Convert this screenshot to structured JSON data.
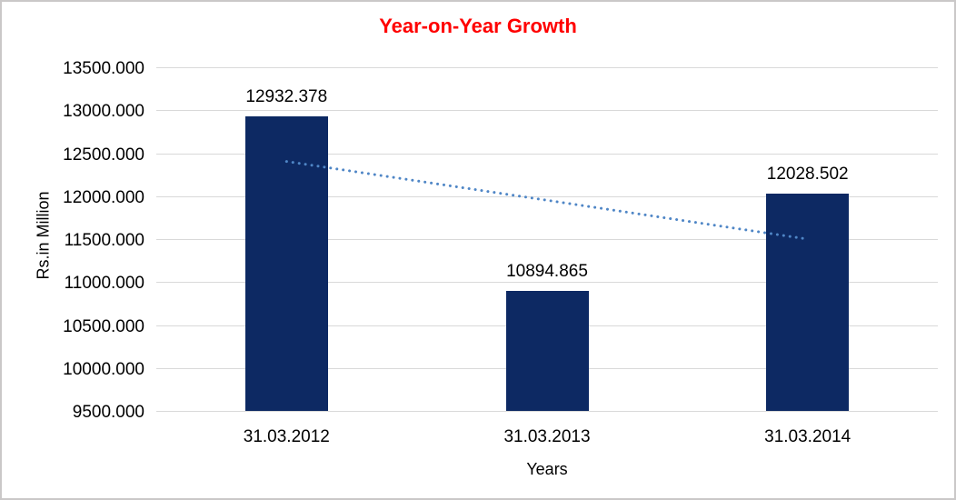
{
  "chart_data": {
    "type": "bar",
    "title": "Year-on-Year Growth",
    "xlabel": "Years",
    "ylabel": "Rs.in Million",
    "categories": [
      "31.03.2012",
      "31.03.2013",
      "31.03.2014"
    ],
    "values": [
      12932.378,
      10894.865,
      12028.502
    ],
    "data_labels": [
      "12932.378",
      "10894.865",
      "12028.502"
    ],
    "ylim": [
      9500,
      13500
    ],
    "ytick_step": 500,
    "ytick_labels": [
      "13500.000",
      "13000.000",
      "12500.000",
      "12000.000",
      "11500.000",
      "11000.000",
      "10500.000",
      "10000.000",
      "9500.000"
    ],
    "grid": true,
    "legend": "none",
    "trendline": {
      "type": "linear",
      "style": "dotted",
      "start_value": 12403.853,
      "end_value": 11499.977
    },
    "colors": {
      "bar": "#0d2963",
      "title": "#ff0000",
      "trendline": "#4f86c6",
      "gridline": "#d9d9d9",
      "text": "#000000",
      "frame_border": "#cac8c8",
      "background": "#ffffff"
    }
  }
}
